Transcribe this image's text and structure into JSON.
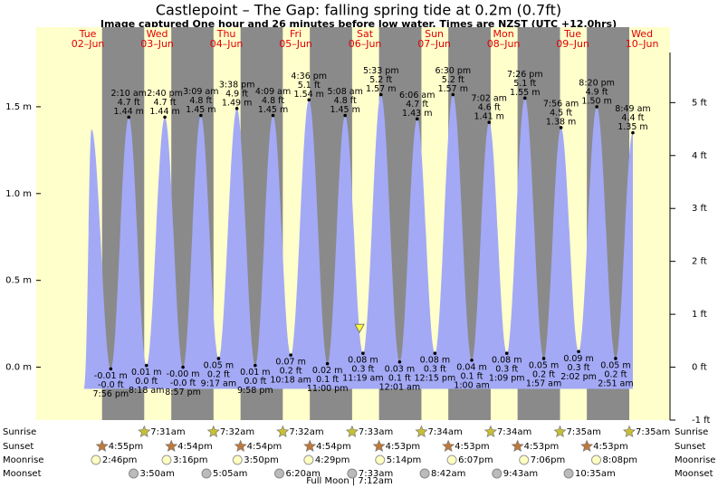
{
  "chart_data": {
    "type": "area",
    "title": "Castlepoint – The Gap: falling  spring tide at 0.2m (0.7ft)",
    "subtitle": "Image captured One hour and 26 minutes before low water. Times are NZST (UTC +12.0hrs)",
    "days": {
      "dow": [
        "Tue",
        "Wed",
        "Thu",
        "Fri",
        "Sat",
        "Sun",
        "Mon",
        "Tue",
        "Wed"
      ],
      "dates": [
        "02–Jun",
        "03–Jun",
        "04–Jun",
        "05–Jun",
        "06–Jun",
        "07–Jun",
        "08–Jun",
        "09–Jun",
        "10–Jun"
      ]
    },
    "xlim": [
      -5.9,
      213.7
    ],
    "ylim": [
      -0.3048,
      1.8125
    ],
    "yticks": [
      {
        "value": 1.5,
        "label": "1.5 m"
      },
      {
        "value": 1.0,
        "label": "1.0 m"
      },
      {
        "value": 0.5,
        "label": "0.5 m"
      },
      {
        "value": 0.0,
        "label": "0.0 m"
      }
    ],
    "y2lim": [
      -1,
      5.947
    ],
    "y2ticks": [
      {
        "value": 5,
        "label": "5 ft"
      },
      {
        "value": 4,
        "label": "4 ft"
      },
      {
        "value": 3,
        "label": "3 ft"
      },
      {
        "value": 2,
        "label": "2 ft"
      },
      {
        "value": 1,
        "label": "1 ft"
      },
      {
        "value": 0,
        "label": "0 ft"
      },
      {
        "value": -1,
        "label": "-1 ft"
      }
    ],
    "color": "#a3a9f5",
    "tides": {
      "x": [
        13.25,
        19.93,
        26.17,
        32.3,
        38.67,
        44.95,
        51.15,
        57.28,
        63.63,
        69.97,
        76.15,
        82.3,
        88.6,
        95,
        101.13,
        107.32,
        113.55,
        120.02,
        126.1,
        132.25,
        138.5,
        145,
        151.03,
        157.15,
        163.43,
        169.95,
        175.93,
        182.03,
        188.33,
        194.85,
        200.82
      ],
      "values": [
        1.37,
        -0.01,
        1.44,
        0.01,
        1.44,
        0,
        1.45,
        0.05,
        1.49,
        0.01,
        1.45,
        0.07,
        1.54,
        0.02,
        1.45,
        0.08,
        1.57,
        0.03,
        1.43,
        0.08,
        1.57,
        0.04,
        1.41,
        0.08,
        1.55,
        0.05,
        1.38,
        0.09,
        1.5,
        0.05,
        1.35
      ],
      "value_labels": [
        null,
        "-0.01 m",
        "1.44 m",
        "0.01 m",
        "1.44 m",
        "-0.00 m",
        "1.45 m",
        "0.05 m",
        "1.49 m",
        "0.01 m",
        "1.45 m",
        "0.07 m",
        "1.54 m",
        "0.02 m",
        "1.45 m",
        "0.08 m",
        "1.57 m",
        "0.03 m",
        "1.43 m",
        "0.08 m",
        "1.57 m",
        "0.04 m",
        "1.41 m",
        "0.08 m",
        "1.55 m",
        "0.05 m",
        "1.38 m",
        "0.09 m",
        "1.50 m",
        "0.05 m",
        "1.35 m"
      ],
      "ft_labels": [
        null,
        "-0.0 ft",
        "4.7 ft",
        "0.0 ft",
        "4.7 ft",
        "-0.0 ft",
        "4.8 ft",
        "0.2 ft",
        "4.9 ft",
        "0.0 ft",
        "4.8 ft",
        "0.2 ft",
        "5.1 ft",
        "0.1 ft",
        "4.8 ft",
        "0.3 ft",
        "5.2 ft",
        "0.1 ft",
        "4.7 ft",
        "0.3 ft",
        "5.2 ft",
        "0.1 ft",
        "4.6 ft",
        "0.3 ft",
        "5.1 ft",
        "0.2 ft",
        "4.5 ft",
        "0.3 ft",
        "4.9 ft",
        "0.2 ft",
        "4.4 ft"
      ],
      "times": [
        null,
        "7:56 pm",
        "2:10 am",
        "8:18 am",
        "2:40 pm",
        "8:57 pm",
        "3:09 am",
        "9:17 am",
        "3:38 pm",
        "9:58 pm",
        "4:09 am",
        "10:18 am",
        "4:36 pm",
        "11:00 pm",
        "5:08 am",
        "11:19 am",
        "5:33 pm",
        "12:01 am",
        "6:06 am",
        "12:15 pm",
        "6:30 pm",
        "1:00 am",
        "7:02 am",
        "1:09 pm",
        "7:26 pm",
        "1:57 am",
        "7:56 am",
        "2:02 pm",
        "8:20 pm",
        "2:51 am",
        "8:49 am"
      ]
    },
    "now": {
      "x": 106.1,
      "value": 0.2
    },
    "astro": [
      {
        "name": "Sunrise",
        "kind": "sunrise",
        "times": [
          null,
          "7:31am",
          "7:32am",
          "7:32am",
          "7:33am",
          "7:34am",
          "7:34am",
          "7:35am",
          "7:35am"
        ]
      },
      {
        "name": "Sunset",
        "kind": "sunset",
        "times": [
          "4:55pm",
          "4:54pm",
          "4:54pm",
          "4:54pm",
          "4:53pm",
          "4:53pm",
          "4:53pm",
          "4:53pm",
          null
        ]
      },
      {
        "name": "Moonrise",
        "kind": "moonrise",
        "times": [
          "2:46pm",
          "3:16pm",
          "3:50pm",
          "4:29pm",
          "5:14pm",
          "6:07pm",
          "7:06pm",
          "8:08pm",
          null
        ]
      },
      {
        "name": "Moonset",
        "kind": "moonset",
        "times": [
          null,
          "3:50am",
          "5:05am",
          "6:20am",
          "7:33am",
          "8:42am",
          "9:43am",
          "10:35am",
          null
        ]
      }
    ],
    "footnote": "Full Moon | 7:12am"
  }
}
